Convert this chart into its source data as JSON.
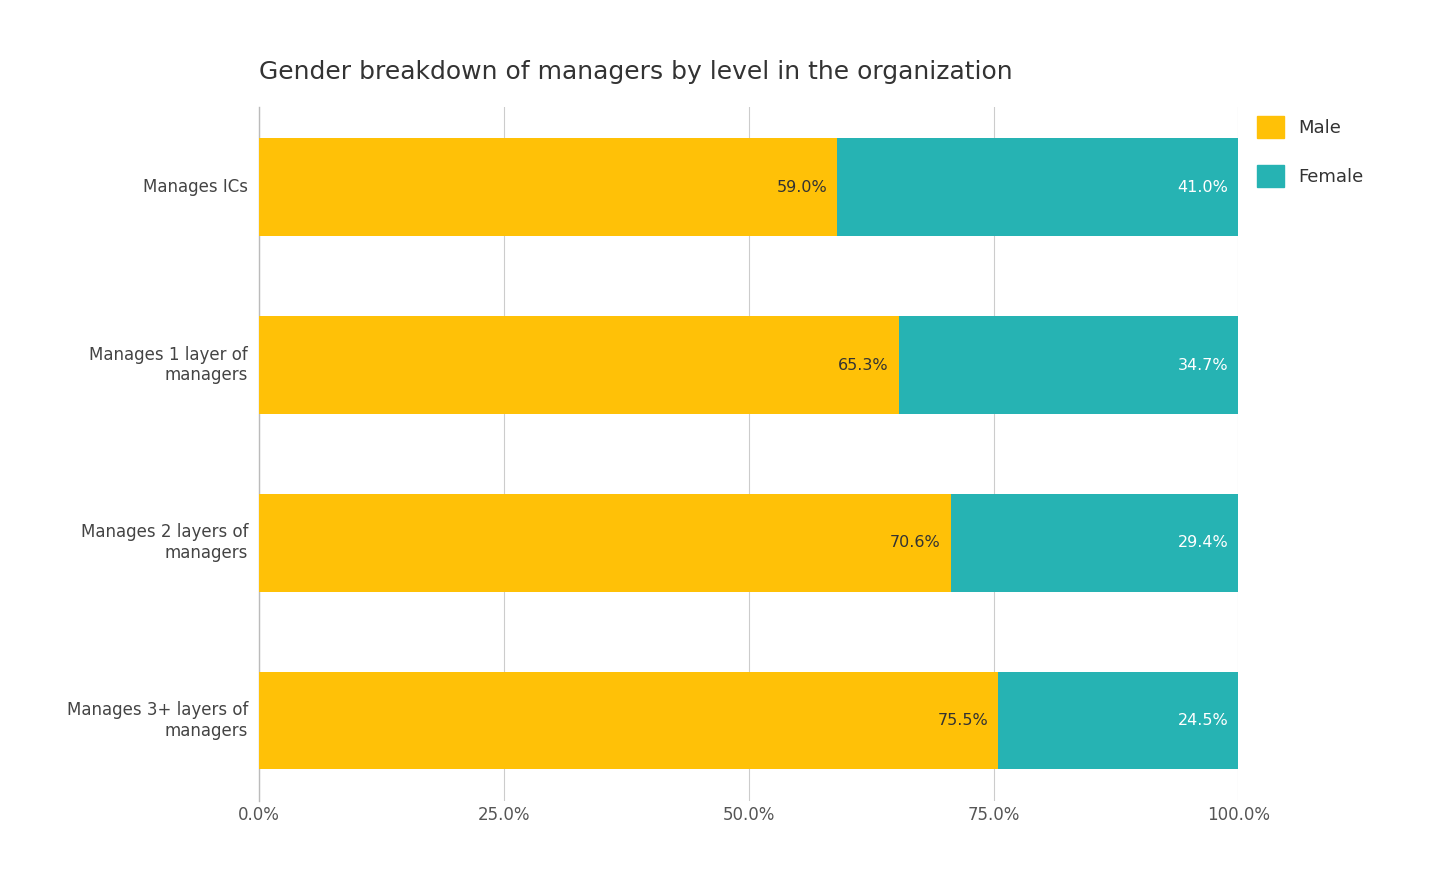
{
  "title": "Gender breakdown of managers by level in the organization",
  "categories": [
    "Manages ICs",
    "Manages 1 layer of\nmanagers",
    "Manages 2 layers of\nmanagers",
    "Manages 3+ layers of\nmanagers"
  ],
  "male_values": [
    59.0,
    65.3,
    70.6,
    75.5
  ],
  "female_values": [
    41.0,
    34.7,
    29.4,
    24.5
  ],
  "male_color": "#FFC107",
  "female_color": "#26B3B3",
  "background_color": "#FFFFFF",
  "title_fontsize": 18,
  "label_fontsize": 12,
  "tick_fontsize": 12,
  "bar_height": 0.55,
  "xlim": [
    0,
    100
  ],
  "xticks": [
    0,
    25,
    50,
    75,
    100
  ],
  "xtick_labels": [
    "0.0%",
    "25.0%",
    "50.0%",
    "75.0%",
    "100.0%"
  ],
  "legend_labels": [
    "Male",
    "Female"
  ],
  "male_label_color": "#333333",
  "female_label_color": "#FFFFFF",
  "value_fontsize": 11.5
}
